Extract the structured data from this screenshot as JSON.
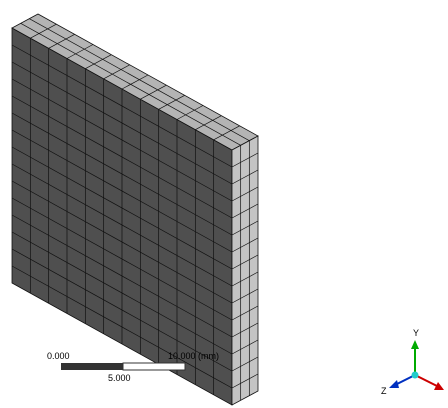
{
  "scale_bar": {
    "start_label": "0.000",
    "end_label": "10.000 (mm)",
    "mid_label": "5.000"
  },
  "triad": {
    "y_label": "Y",
    "z_label": "Z"
  }
}
